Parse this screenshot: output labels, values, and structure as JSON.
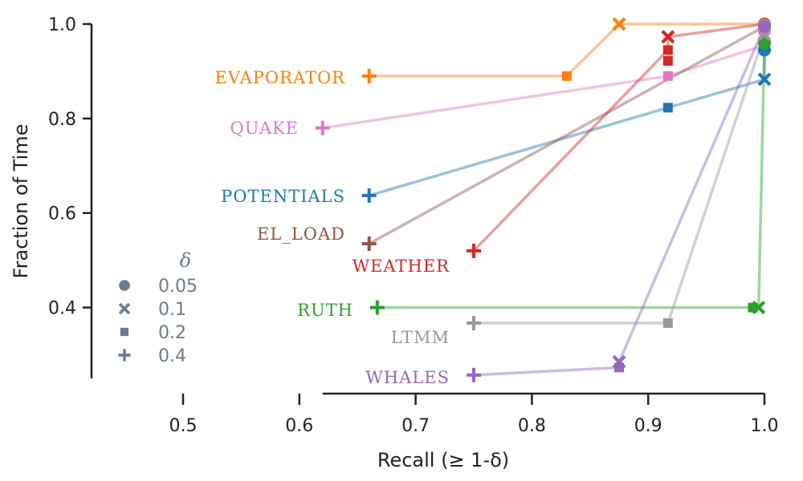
{
  "chart_data": {
    "type": "line",
    "xlabel": "Recall (≥ 1-δ)",
    "ylabel": "Fraction of Time",
    "xlim": [
      0.5,
      1.0
    ],
    "ylim": [
      0.25,
      1.0
    ],
    "x_ticks": [
      "0.5",
      "0.6",
      "0.7",
      "0.8",
      "0.9",
      "1.0"
    ],
    "y_ticks": [
      "0.4",
      "0.6",
      "0.8",
      "1.0"
    ],
    "grid": false,
    "legend": {
      "title": "δ",
      "position": "lower-left",
      "items": [
        {
          "label": "0.05",
          "marker": "circle"
        },
        {
          "label": "0.1",
          "marker": "x"
        },
        {
          "label": "0.2",
          "marker": "square"
        },
        {
          "label": "0.4",
          "marker": "plus"
        }
      ],
      "color": "#6b7b8c"
    },
    "series": [
      {
        "name": "EVAPORATOR",
        "color": "#ff7f0e",
        "points": [
          {
            "delta": "0.4",
            "x": 0.66,
            "y": 0.89
          },
          {
            "delta": "0.2",
            "x": 0.83,
            "y": 0.89
          },
          {
            "delta": "0.1",
            "x": 0.875,
            "y": 1.0
          },
          {
            "delta": "0.05",
            "x": 1.0,
            "y": 1.0
          }
        ]
      },
      {
        "name": "QUAKE",
        "color": "#e377c2",
        "points": [
          {
            "delta": "0.4",
            "x": 0.62,
            "y": 0.78
          },
          {
            "delta": "0.2",
            "x": 0.917,
            "y": 0.89
          },
          {
            "delta": "0.1",
            "x": 1.0,
            "y": 0.955
          },
          {
            "delta": "0.05",
            "x": 1.0,
            "y": 0.985
          }
        ]
      },
      {
        "name": "POTENTIALS",
        "color": "#1f77b4",
        "points": [
          {
            "delta": "0.4",
            "x": 0.66,
            "y": 0.637
          },
          {
            "delta": "0.2",
            "x": 0.917,
            "y": 0.823
          },
          {
            "delta": "0.1",
            "x": 1.0,
            "y": 0.883
          },
          {
            "delta": "0.05",
            "x": 1.0,
            "y": 0.945
          }
        ]
      },
      {
        "name": "EL_LOAD",
        "color": "#8c564b",
        "points": [
          {
            "delta": "0.4",
            "x": 0.66,
            "y": 0.535
          },
          {
            "delta": "0.05",
            "x": 1.0,
            "y": 0.995
          }
        ]
      },
      {
        "name": "WEATHER",
        "color": "#d62728",
        "points": [
          {
            "delta": "0.4",
            "x": 0.75,
            "y": 0.52
          },
          {
            "delta": "0.2",
            "x": 0.917,
            "y": 0.945
          },
          {
            "delta": "0.1",
            "x": 0.917,
            "y": 0.973
          },
          {
            "delta": "0.05",
            "x": 1.0,
            "y": 1.0
          }
        ],
        "extra_markers": [
          {
            "delta": "0.2",
            "x": 0.917,
            "y": 0.922
          }
        ]
      },
      {
        "name": "RUTH",
        "color": "#2ca02c",
        "points": [
          {
            "delta": "0.4",
            "x": 0.667,
            "y": 0.4
          },
          {
            "delta": "0.2",
            "x": 0.99,
            "y": 0.4
          },
          {
            "delta": "0.1",
            "x": 0.995,
            "y": 0.4
          },
          {
            "delta": "0.05",
            "x": 1.0,
            "y": 0.96
          }
        ]
      },
      {
        "name": "LTMM",
        "color": "#999999",
        "points": [
          {
            "delta": "0.4",
            "x": 0.75,
            "y": 0.367
          },
          {
            "delta": "0.2",
            "x": 0.917,
            "y": 0.367
          },
          {
            "delta": "0.1",
            "x": 1.0,
            "y": 0.978
          },
          {
            "delta": "0.05",
            "x": 1.0,
            "y": 0.998
          }
        ]
      },
      {
        "name": "WHALES",
        "color": "#9467bd",
        "points": [
          {
            "delta": "0.4",
            "x": 0.75,
            "y": 0.257
          },
          {
            "delta": "0.2",
            "x": 0.875,
            "y": 0.273
          },
          {
            "delta": "0.1",
            "x": 0.875,
            "y": 0.285
          },
          {
            "delta": "0.05",
            "x": 1.0,
            "y": 0.995
          }
        ]
      }
    ]
  }
}
